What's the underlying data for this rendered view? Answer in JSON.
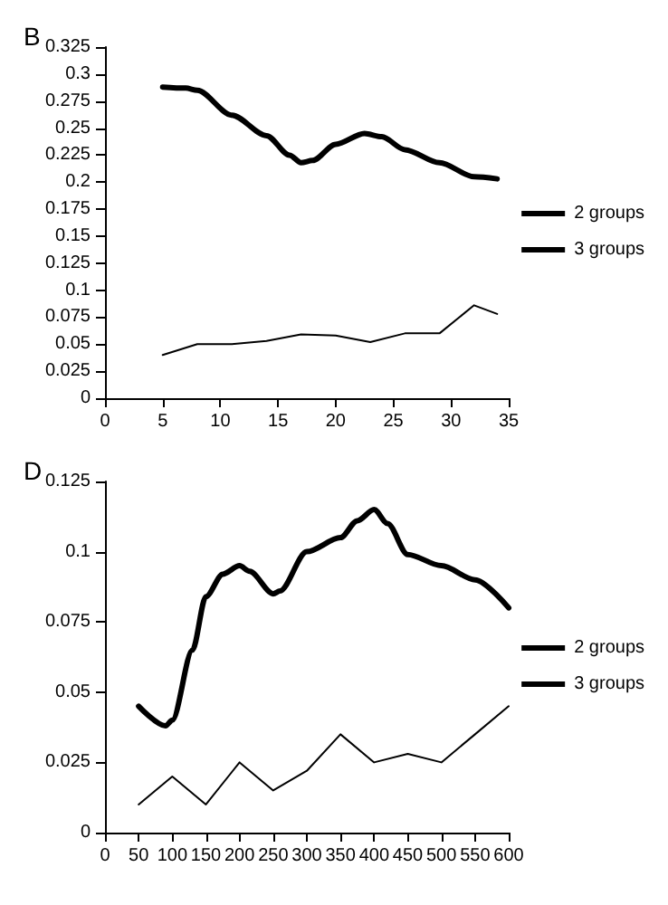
{
  "chart_data": [
    {
      "type": "line",
      "title": "B",
      "x": [
        5,
        7,
        8,
        11,
        14,
        16,
        17,
        18,
        20,
        22.5,
        24,
        26,
        29,
        32,
        34
      ],
      "series": [
        {
          "name": "2 groups",
          "color": "#000000",
          "values": [
            0.288,
            0.287,
            0.285,
            0.262,
            0.243,
            0.225,
            0.218,
            0.22,
            0.235,
            0.245,
            0.242,
            0.23,
            0.218,
            0.205,
            0.203
          ]
        },
        {
          "name": "3 groups",
          "color": "#000000",
          "x": [
            5,
            8,
            11,
            14,
            17,
            20,
            23,
            26,
            29,
            32,
            34
          ],
          "values": [
            0.04,
            0.05,
            0.05,
            0.053,
            0.059,
            0.058,
            0.052,
            0.06,
            0.06,
            0.086,
            0.078
          ]
        }
      ],
      "xlim": [
        0,
        35
      ],
      "xticks": [
        0,
        5,
        10,
        15,
        20,
        25,
        30,
        35
      ],
      "ylim": [
        0,
        0.325
      ],
      "yticks": [
        0,
        0.025,
        0.05,
        0.075,
        0.1,
        0.125,
        0.15,
        0.175,
        0.2,
        0.225,
        0.25,
        0.275,
        0.3,
        0.325
      ],
      "grid": false,
      "legend": "right",
      "marker": "none"
    },
    {
      "type": "line",
      "title": "D",
      "x": [
        50,
        90,
        100,
        130,
        150,
        175,
        200,
        215,
        250,
        260,
        300,
        350,
        375,
        400,
        420,
        450,
        500,
        550,
        600
      ],
      "series": [
        {
          "name": "2 groups",
          "color": "#000000",
          "values": [
            0.045,
            0.038,
            0.04,
            0.065,
            0.084,
            0.092,
            0.095,
            0.093,
            0.085,
            0.086,
            0.1,
            0.105,
            0.111,
            0.115,
            0.11,
            0.099,
            0.095,
            0.09,
            0.08
          ]
        },
        {
          "name": "3 groups",
          "color": "#000000",
          "x": [
            50,
            100,
            150,
            200,
            250,
            300,
            350,
            400,
            450,
            500,
            550,
            600
          ],
          "values": [
            0.01,
            0.02,
            0.01,
            0.025,
            0.015,
            0.022,
            0.035,
            0.025,
            0.028,
            0.025,
            0.035,
            0.045
          ]
        }
      ],
      "xlim": [
        0,
        600
      ],
      "xticks": [
        0,
        50,
        100,
        150,
        200,
        250,
        300,
        350,
        400,
        450,
        500,
        550,
        600
      ],
      "ylim": [
        0,
        0.125
      ],
      "yticks": [
        0,
        0.025,
        0.05,
        0.075,
        0.1,
        0.125
      ],
      "grid": false,
      "legend": "right",
      "marker": "none"
    }
  ]
}
